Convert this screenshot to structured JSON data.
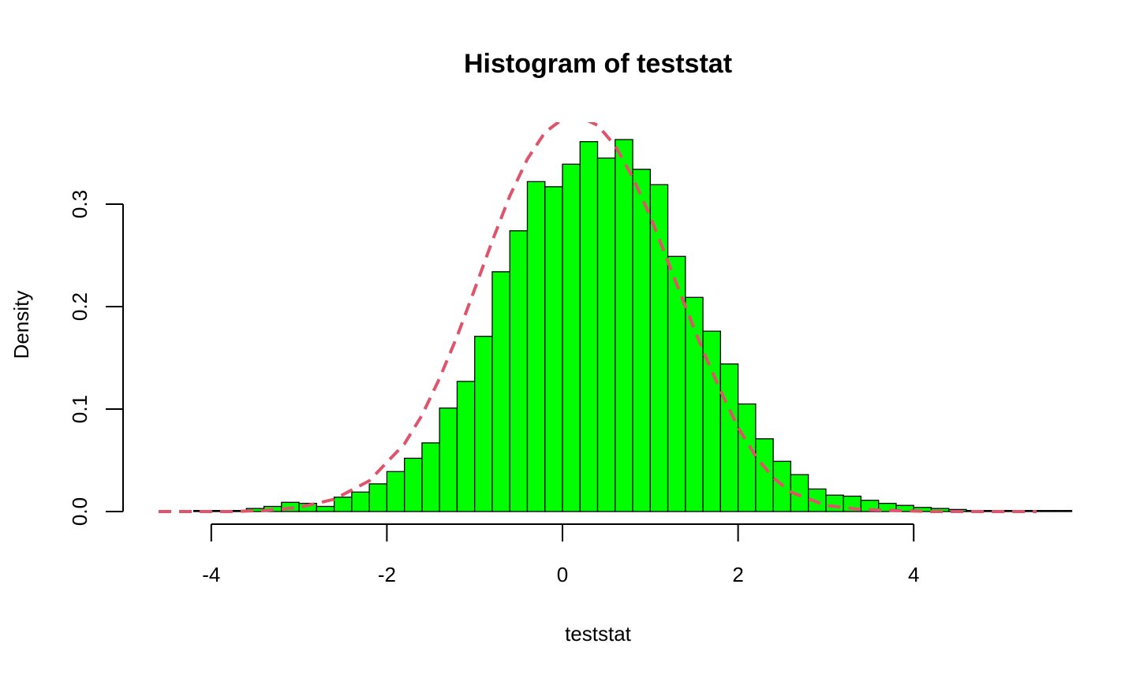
{
  "chart_data": {
    "type": "bar",
    "title": "Histogram of teststat",
    "xlabel": "teststat",
    "ylabel": "Density",
    "xlim": [
      -4.5,
      5.4
    ],
    "ylim": [
      0,
      0.38
    ],
    "x_ticks": [
      "-4",
      "-2",
      "0",
      "2",
      "4"
    ],
    "x_tick_values": [
      -4,
      -2,
      0,
      2,
      4
    ],
    "y_ticks": [
      "0.0",
      "0.1",
      "0.2",
      "0.3"
    ],
    "y_tick_values": [
      0,
      0.1,
      0.2,
      0.3
    ],
    "bin_width": 0.2,
    "bin_start": -4.2,
    "values": [
      0.001,
      0.001,
      0.001,
      0.003,
      0.005,
      0.009,
      0.008,
      0.005,
      0.014,
      0.019,
      0.027,
      0.039,
      0.052,
      0.067,
      0.101,
      0.127,
      0.171,
      0.234,
      0.274,
      0.322,
      0.317,
      0.339,
      0.361,
      0.345,
      0.363,
      0.334,
      0.319,
      0.249,
      0.209,
      0.176,
      0.144,
      0.105,
      0.071,
      0.049,
      0.036,
      0.022,
      0.016,
      0.015,
      0.011,
      0.008,
      0.006,
      0.004,
      0.003,
      0.002,
      0.001,
      0.001,
      0.001,
      0.001,
      0.001,
      0.001
    ],
    "density_curve": {
      "x": [
        -4.6,
        -4.2,
        -3.8,
        -3.4,
        -3.0,
        -2.6,
        -2.2,
        -1.8,
        -1.6,
        -1.4,
        -1.2,
        -1.0,
        -0.8,
        -0.6,
        -0.4,
        -0.2,
        0.0,
        0.2,
        0.4,
        0.6,
        0.8,
        1.0,
        1.2,
        1.4,
        1.6,
        1.8,
        2.0,
        2.2,
        2.4,
        2.6,
        3.0,
        3.4,
        3.8,
        4.2,
        4.6,
        5.0,
        5.4
      ],
      "y": [
        0.0,
        0.0,
        0.0,
        0.001,
        0.004,
        0.012,
        0.03,
        0.066,
        0.094,
        0.13,
        0.171,
        0.217,
        0.264,
        0.308,
        0.344,
        0.37,
        0.383,
        0.385,
        0.377,
        0.357,
        0.326,
        0.288,
        0.244,
        0.2,
        0.157,
        0.118,
        0.082,
        0.054,
        0.033,
        0.019,
        0.006,
        0.002,
        0.001,
        0.0,
        0.0,
        0.0,
        0.0
      ]
    },
    "colors": {
      "bar_fill": "#00ff00",
      "bar_stroke": "#000000",
      "curve": "#df536b"
    },
    "grid": false,
    "legend": "none"
  }
}
